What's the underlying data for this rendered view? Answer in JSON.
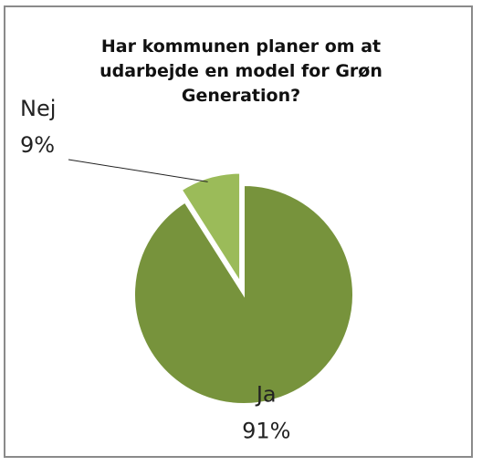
{
  "chart_data": {
    "type": "pie",
    "title": "Har kommunen planer om at udarbejde en model for Grøn Generation?",
    "categories": [
      "Ja",
      "Nej"
    ],
    "values": [
      91,
      9
    ],
    "value_labels": [
      "91%",
      "9%"
    ],
    "colors": [
      "#77933c",
      "#9bbb59"
    ],
    "exploded": [
      false,
      true
    ]
  }
}
